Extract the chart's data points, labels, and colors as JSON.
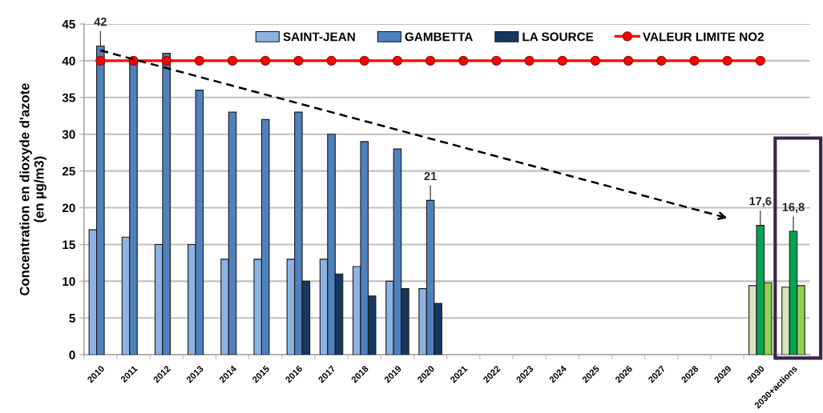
{
  "chart_data": {
    "type": "bar",
    "ylabel": "Concentration en dioxyde d'azote\n(en µg/m3)",
    "categories": [
      "2010",
      "2011",
      "2012",
      "2013",
      "2014",
      "2015",
      "2016",
      "2017",
      "2018",
      "2019",
      "2020",
      "2021",
      "2022",
      "2023",
      "2024",
      "2025",
      "2026",
      "2027",
      "2028",
      "2029",
      "2030",
      "2030+actions"
    ],
    "series": [
      {
        "name": "SAINT-JEAN",
        "color": "#8db3e2",
        "colors": [
          "#8db3e2",
          "#8db3e2",
          "#8db3e2",
          "#8db3e2",
          "#8db3e2",
          "#8db3e2",
          "#8db3e2",
          "#8db3e2",
          "#8db3e2",
          "#8db3e2",
          "#8db3e2",
          "#8db3e2",
          "#8db3e2",
          "#8db3e2",
          "#8db3e2",
          "#8db3e2",
          "#8db3e2",
          "#8db3e2",
          "#8db3e2",
          "#8db3e2",
          "#d7e4bd",
          "#d7e4bd"
        ],
        "values": [
          17,
          16,
          15,
          15,
          13,
          13,
          13,
          13,
          12,
          10,
          9,
          null,
          null,
          null,
          null,
          null,
          null,
          null,
          null,
          null,
          9.4,
          9.2
        ]
      },
      {
        "name": "GAMBETTA",
        "color": "#4f81bd",
        "colors": [
          "#4f81bd",
          "#4f81bd",
          "#4f81bd",
          "#4f81bd",
          "#4f81bd",
          "#4f81bd",
          "#4f81bd",
          "#4f81bd",
          "#4f81bd",
          "#4f81bd",
          "#4f81bd",
          "#4f81bd",
          "#4f81bd",
          "#4f81bd",
          "#4f81bd",
          "#4f81bd",
          "#4f81bd",
          "#4f81bd",
          "#4f81bd",
          "#4f81bd",
          "#00a550",
          "#00a550"
        ],
        "values": [
          42,
          40,
          41,
          36,
          33,
          32,
          33,
          30,
          29,
          28,
          21,
          null,
          null,
          null,
          null,
          null,
          null,
          null,
          null,
          null,
          17.6,
          16.8
        ],
        "value_labels": [
          "42",
          null,
          null,
          null,
          null,
          null,
          null,
          null,
          null,
          null,
          "21",
          null,
          null,
          null,
          null,
          null,
          null,
          null,
          null,
          null,
          "17,6",
          "16,8"
        ]
      },
      {
        "name": "LA SOURCE",
        "color": "#17375e",
        "colors": [
          "#17375e",
          "#17375e",
          "#17375e",
          "#17375e",
          "#17375e",
          "#17375e",
          "#17375e",
          "#17375e",
          "#17375e",
          "#17375e",
          "#17375e",
          "#17375e",
          "#17375e",
          "#17375e",
          "#17375e",
          "#17375e",
          "#17375e",
          "#17375e",
          "#17375e",
          "#17375e",
          "#92d050",
          "#92d050"
        ],
        "values": [
          null,
          null,
          null,
          null,
          null,
          null,
          10,
          11,
          8,
          9,
          7,
          null,
          null,
          null,
          null,
          null,
          null,
          null,
          null,
          null,
          9.8,
          9.4
        ]
      },
      {
        "name": "VALEUR LIMITE NO2",
        "type": "line",
        "color": "#ff0000",
        "marker": "circle",
        "values": [
          40,
          40,
          40,
          40,
          40,
          40,
          40,
          40,
          40,
          40,
          40,
          40,
          40,
          40,
          40,
          40,
          40,
          40,
          40,
          40,
          40,
          null
        ]
      },
      {
        "type": "line",
        "color": "#000000",
        "line_style": "dashed",
        "values": [
          41.4,
          40.2,
          39.0,
          37.8,
          36.6,
          35.4,
          34.2,
          33.0,
          31.8,
          30.6,
          29.4,
          28.2,
          27.0,
          25.8,
          24.6,
          23.4,
          22.2,
          21.0,
          19.8,
          18.6,
          null,
          null
        ]
      }
    ],
    "ylim": [
      0,
      45
    ],
    "yticks": [
      0,
      5,
      10,
      15,
      20,
      25,
      30,
      35,
      40,
      45
    ],
    "grid": "y",
    "legend": "top"
  }
}
